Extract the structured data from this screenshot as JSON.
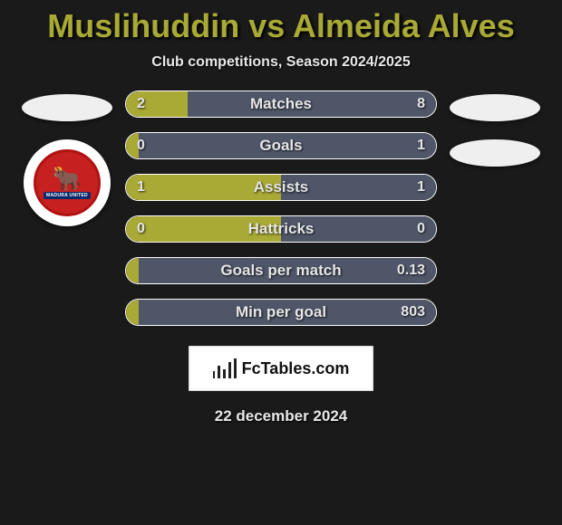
{
  "title": "Muslihuddin vs Almeida Alves",
  "subtitle": "Club competitions, Season 2024/2025",
  "date": "22 december 2024",
  "brand": "FcTables.com",
  "colors": {
    "left": "#a9a936",
    "right": "#4e5668",
    "title": "#a9a936",
    "background": "#1a1a1a",
    "row_border": "#ffffff",
    "text": "#e6e6e6"
  },
  "left_player": {
    "name": "Muslihuddin"
  },
  "right_player": {
    "name": "Almeida Alves"
  },
  "rows": [
    {
      "label": "Matches",
      "left": "2",
      "right": "8",
      "left_pct": 20,
      "right_pct": 80
    },
    {
      "label": "Goals",
      "left": "0",
      "right": "1",
      "left_pct": 4,
      "right_pct": 96
    },
    {
      "label": "Assists",
      "left": "1",
      "right": "1",
      "left_pct": 50,
      "right_pct": 50
    },
    {
      "label": "Hattricks",
      "left": "0",
      "right": "0",
      "left_pct": 50,
      "right_pct": 50
    },
    {
      "label": "Goals per match",
      "left": "",
      "right": "0.13",
      "left_pct": 4,
      "right_pct": 96
    },
    {
      "label": "Min per goal",
      "left": "",
      "right": "803",
      "left_pct": 4,
      "right_pct": 96
    }
  ]
}
